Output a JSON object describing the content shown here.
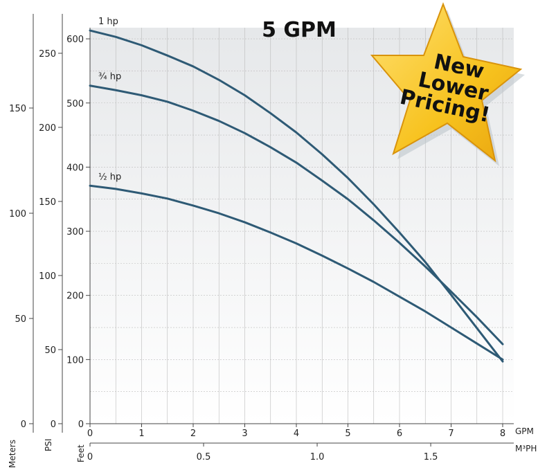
{
  "chart_data": {
    "type": "line",
    "title": "5 GPM",
    "x": [
      0,
      0.5,
      1,
      1.5,
      2,
      2.5,
      3,
      3.5,
      4,
      4.5,
      5,
      5.5,
      6,
      6.5,
      7,
      7.5,
      8
    ],
    "xlabel": "GPM",
    "xlim": [
      0,
      8
    ],
    "x_ticks": [
      "0",
      "1",
      "2",
      "3",
      "4",
      "5",
      "6",
      "7",
      "8"
    ],
    "x2label": "M³PH",
    "x2_ticks": [
      "0",
      "0.5",
      "1.0",
      "1.5"
    ],
    "ylabel": "Feet",
    "ylim": [
      0,
      620
    ],
    "y_ticks": [
      "0",
      "100",
      "200",
      "300",
      "400",
      "500",
      "600"
    ],
    "psi_label": "PSI",
    "psi_ticks": [
      "0",
      "50",
      "100",
      "150",
      "200",
      "250"
    ],
    "meters_label": "Meters",
    "meters_ticks": [
      "0",
      "50",
      "100",
      "150"
    ],
    "grid": true,
    "series": [
      {
        "name": "1 hp",
        "values": [
          613,
          603,
          590,
          574,
          557,
          536,
          512,
          484,
          454,
          420,
          383,
          342,
          298,
          252,
          201,
          149,
          97
        ]
      },
      {
        "name": "¾ hp",
        "values": [
          527,
          520,
          512,
          502,
          488,
          472,
          453,
          431,
          407,
          379,
          350,
          317,
          282,
          245,
          206,
          166,
          124
        ]
      },
      {
        "name": "½ hp",
        "values": [
          371,
          366,
          359,
          351,
          340,
          328,
          314,
          298,
          281,
          262,
          242,
          221,
          198,
          175,
          150,
          125,
          100
        ]
      }
    ]
  },
  "badge": {
    "line1": "New",
    "line2": "Lower",
    "line3": "Pricing!"
  },
  "colors": {
    "curve": "#2e5a75",
    "star": "#f7c21e",
    "star_edge": "#e09a0c",
    "grid": "#bbbbbb",
    "fill_top": "#e6e8ea"
  }
}
